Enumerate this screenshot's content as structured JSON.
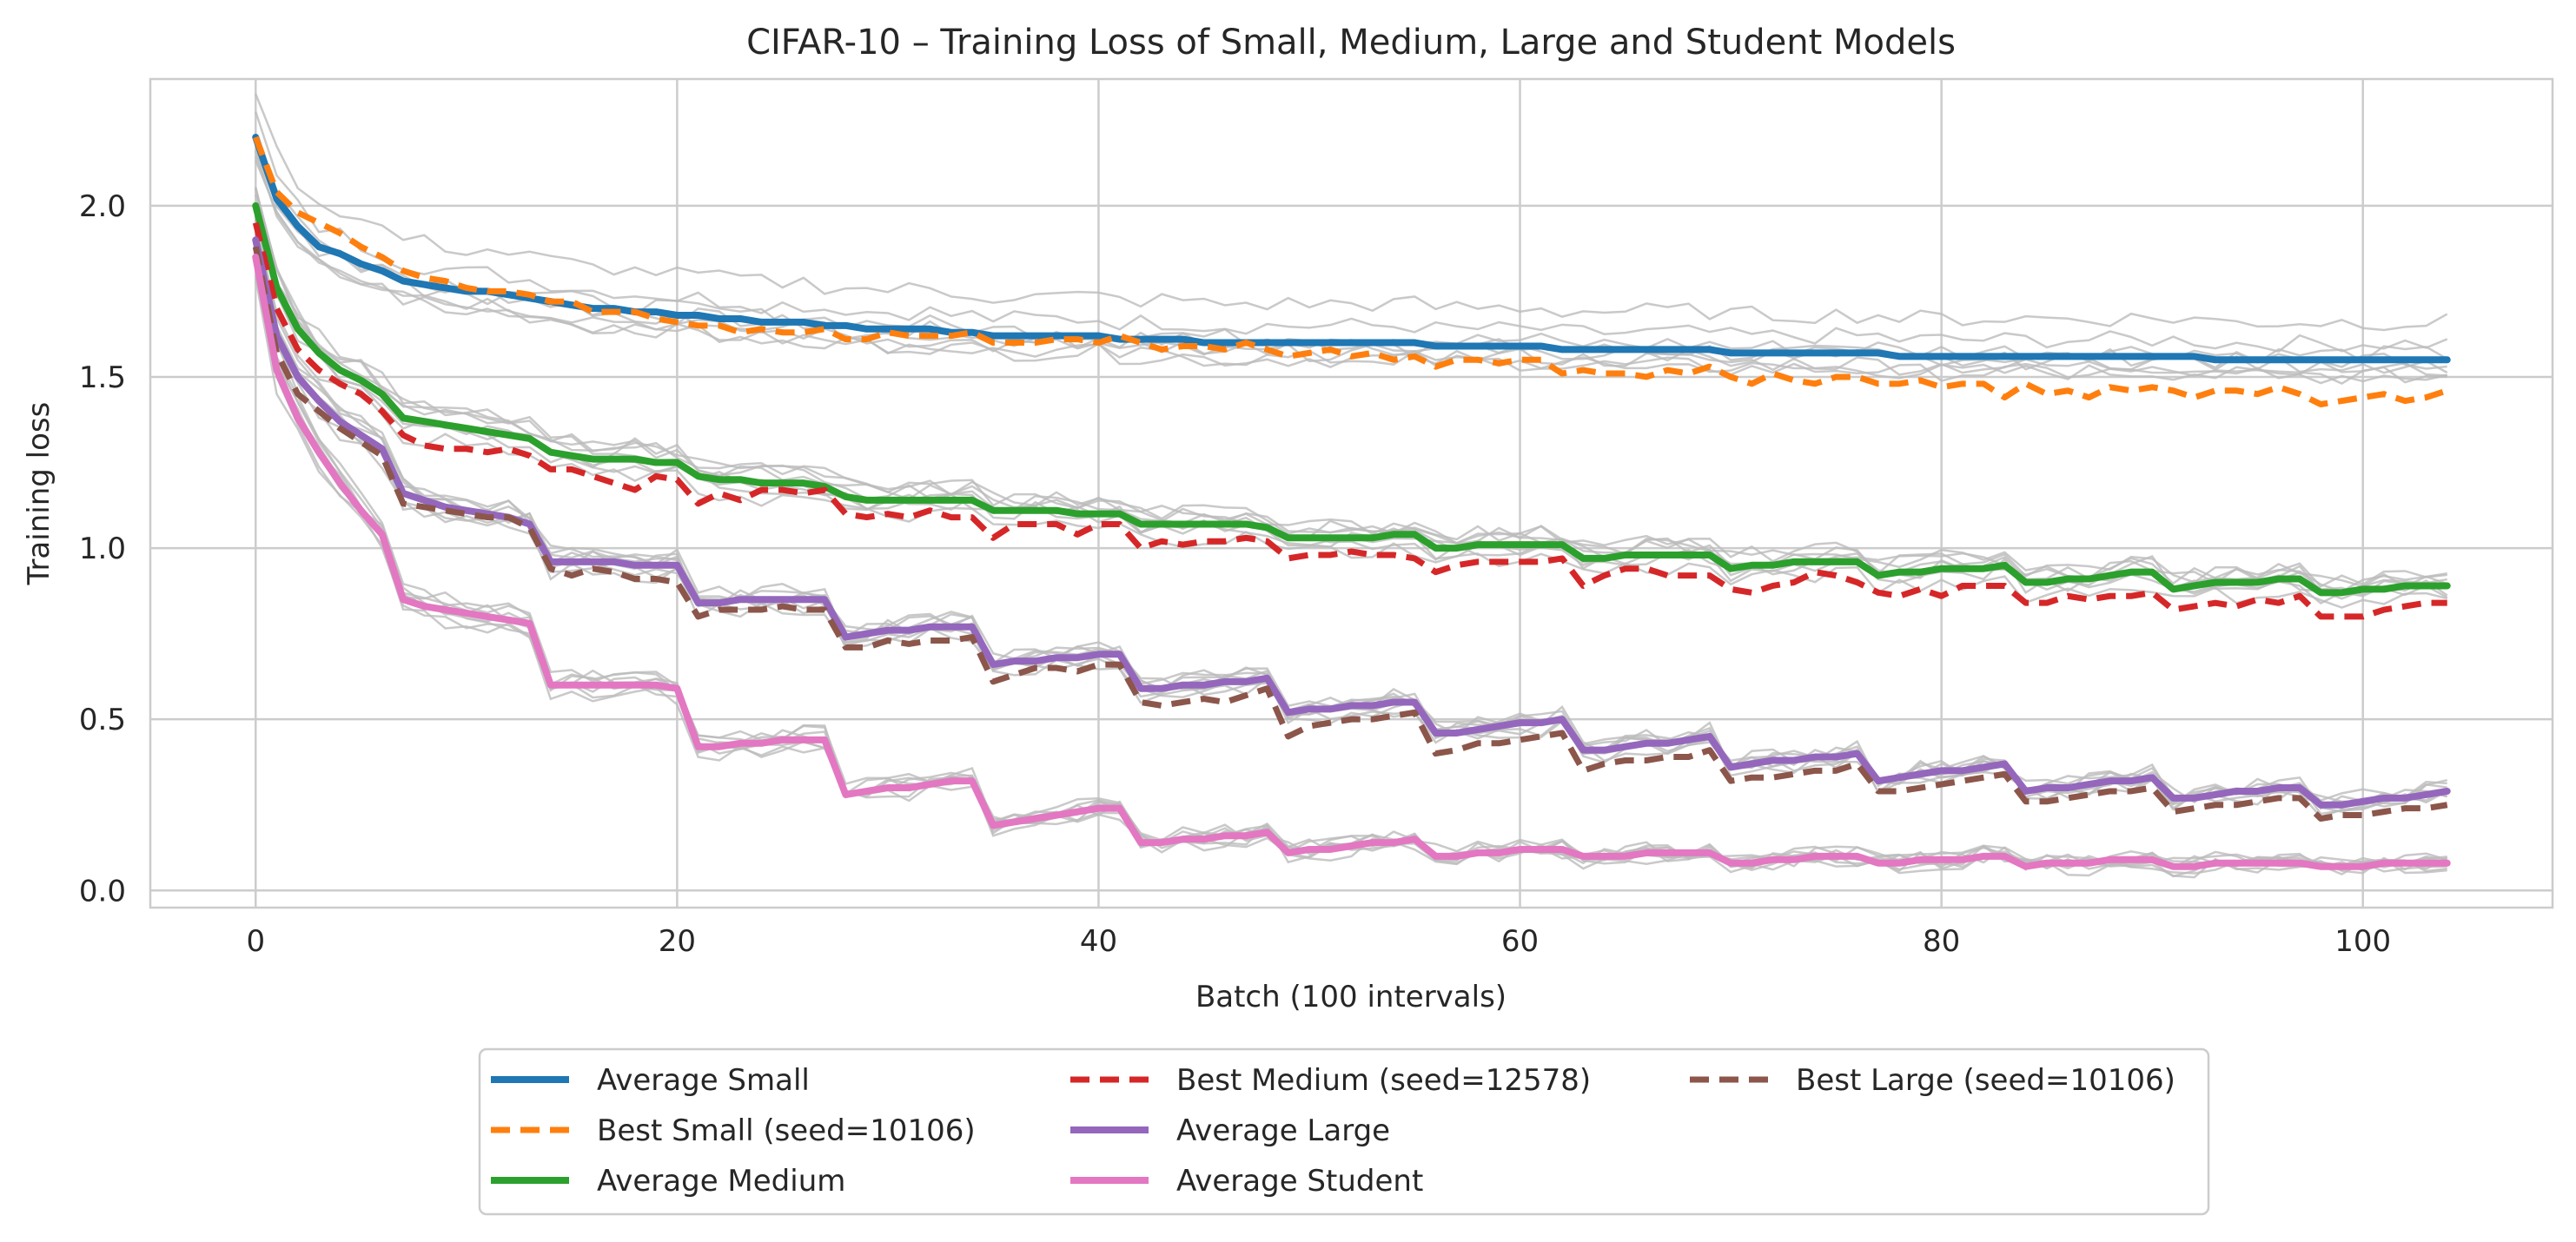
{
  "chart_data": {
    "type": "line",
    "title": "CIFAR-10 – Training Loss of Small, Medium, Large and Student Models",
    "xlabel": "Batch (100 intervals)",
    "ylabel": "Training loss",
    "xlim": [
      -5,
      109
    ],
    "ylim": [
      -0.05,
      2.37
    ],
    "xticks": [
      0,
      20,
      40,
      60,
      80,
      100
    ],
    "yticks": [
      0.0,
      0.5,
      1.0,
      1.5,
      2.0
    ],
    "xtick_labels": [
      "0",
      "20",
      "40",
      "60",
      "80",
      "100"
    ],
    "ytick_labels": [
      "0.0",
      "0.5",
      "1.0",
      "1.5",
      "2.0"
    ],
    "grid": true,
    "legend_position": "bottom-center",
    "legend_columns": 3,
    "x": [
      0,
      1,
      2,
      3,
      4,
      5,
      6,
      7,
      8,
      9,
      10,
      11,
      12,
      13,
      14,
      15,
      16,
      17,
      18,
      19,
      20,
      21,
      22,
      23,
      24,
      25,
      26,
      27,
      28,
      29,
      30,
      31,
      32,
      33,
      34,
      35,
      36,
      37,
      38,
      39,
      40,
      41,
      42,
      43,
      44,
      45,
      46,
      47,
      48,
      49,
      50,
      51,
      52,
      53,
      54,
      55,
      56,
      57,
      58,
      59,
      60,
      61,
      62,
      63,
      64,
      65,
      66,
      67,
      68,
      69,
      70,
      71,
      72,
      73,
      74,
      75,
      76,
      77,
      78,
      79,
      80,
      81,
      82,
      83,
      84,
      85,
      86,
      87,
      88,
      89,
      90,
      91,
      92,
      93,
      94,
      95,
      96,
      97,
      98,
      99,
      100,
      101,
      102,
      103,
      104
    ],
    "series": [
      {
        "name": "Average Small",
        "color": "#1f77b4",
        "style": "solid",
        "width": 8,
        "values": [
          2.2,
          2.02,
          1.94,
          1.88,
          1.86,
          1.83,
          1.81,
          1.78,
          1.77,
          1.76,
          1.75,
          1.75,
          1.74,
          1.73,
          1.72,
          1.71,
          1.7,
          1.7,
          1.69,
          1.69,
          1.68,
          1.68,
          1.67,
          1.67,
          1.66,
          1.66,
          1.66,
          1.65,
          1.65,
          1.64,
          1.64,
          1.64,
          1.64,
          1.63,
          1.63,
          1.62,
          1.62,
          1.62,
          1.62,
          1.62,
          1.62,
          1.61,
          1.61,
          1.61,
          1.61,
          1.6,
          1.6,
          1.6,
          1.6,
          1.6,
          1.6,
          1.6,
          1.6,
          1.6,
          1.6,
          1.6,
          1.59,
          1.59,
          1.59,
          1.59,
          1.59,
          1.59,
          1.58,
          1.58,
          1.58,
          1.58,
          1.58,
          1.58,
          1.58,
          1.58,
          1.57,
          1.57,
          1.57,
          1.57,
          1.57,
          1.57,
          1.57,
          1.57,
          1.56,
          1.56,
          1.56,
          1.56,
          1.56,
          1.56,
          1.56,
          1.56,
          1.56,
          1.56,
          1.56,
          1.56,
          1.56,
          1.56,
          1.56,
          1.55,
          1.55,
          1.55,
          1.55,
          1.55,
          1.55,
          1.55,
          1.55,
          1.55,
          1.55,
          1.55,
          1.55
        ]
      },
      {
        "name": "Best Small (seed=10106)",
        "color": "#ff7f0e",
        "style": "dashed",
        "width": 7,
        "values": [
          2.2,
          2.04,
          1.98,
          1.95,
          1.92,
          1.88,
          1.85,
          1.81,
          1.79,
          1.78,
          1.76,
          1.75,
          1.75,
          1.74,
          1.72,
          1.72,
          1.69,
          1.69,
          1.69,
          1.67,
          1.66,
          1.65,
          1.65,
          1.63,
          1.64,
          1.63,
          1.63,
          1.64,
          1.61,
          1.61,
          1.63,
          1.62,
          1.62,
          1.62,
          1.63,
          1.6,
          1.6,
          1.6,
          1.61,
          1.61,
          1.6,
          1.62,
          1.6,
          1.58,
          1.59,
          1.59,
          1.58,
          1.6,
          1.58,
          1.56,
          1.57,
          1.58,
          1.56,
          1.57,
          1.55,
          1.56,
          1.53,
          1.55,
          1.55,
          1.54,
          1.55,
          1.55,
          1.51,
          1.52,
          1.51,
          1.51,
          1.5,
          1.52,
          1.51,
          1.53,
          1.5,
          1.48,
          1.51,
          1.49,
          1.48,
          1.5,
          1.5,
          1.48,
          1.48,
          1.49,
          1.47,
          1.48,
          1.48,
          1.44,
          1.48,
          1.45,
          1.46,
          1.44,
          1.47,
          1.46,
          1.47,
          1.46,
          1.44,
          1.46,
          1.46,
          1.45,
          1.47,
          1.45,
          1.42,
          1.43,
          1.44,
          1.45,
          1.43,
          1.44,
          1.46
        ]
      },
      {
        "name": "Average Medium",
        "color": "#2ca02c",
        "style": "solid",
        "width": 8,
        "values": [
          2.0,
          1.76,
          1.64,
          1.57,
          1.52,
          1.49,
          1.45,
          1.38,
          1.37,
          1.36,
          1.35,
          1.34,
          1.33,
          1.32,
          1.28,
          1.27,
          1.26,
          1.26,
          1.26,
          1.25,
          1.25,
          1.21,
          1.2,
          1.2,
          1.19,
          1.19,
          1.19,
          1.18,
          1.15,
          1.14,
          1.14,
          1.14,
          1.14,
          1.14,
          1.14,
          1.11,
          1.11,
          1.11,
          1.11,
          1.1,
          1.1,
          1.1,
          1.07,
          1.07,
          1.07,
          1.07,
          1.07,
          1.07,
          1.06,
          1.03,
          1.03,
          1.03,
          1.03,
          1.03,
          1.04,
          1.04,
          1.0,
          1.0,
          1.01,
          1.01,
          1.01,
          1.01,
          1.01,
          0.97,
          0.97,
          0.98,
          0.98,
          0.98,
          0.98,
          0.98,
          0.94,
          0.95,
          0.95,
          0.96,
          0.96,
          0.96,
          0.96,
          0.92,
          0.93,
          0.93,
          0.94,
          0.94,
          0.94,
          0.95,
          0.9,
          0.9,
          0.91,
          0.91,
          0.92,
          0.93,
          0.93,
          0.88,
          0.89,
          0.9,
          0.9,
          0.9,
          0.91,
          0.91,
          0.87,
          0.87,
          0.88,
          0.88,
          0.89,
          0.89,
          0.89
        ]
      },
      {
        "name": "Best Medium (seed=12578)",
        "color": "#d62728",
        "style": "dashed",
        "width": 7,
        "values": [
          1.95,
          1.7,
          1.58,
          1.52,
          1.48,
          1.45,
          1.4,
          1.33,
          1.3,
          1.29,
          1.29,
          1.28,
          1.29,
          1.27,
          1.23,
          1.23,
          1.21,
          1.19,
          1.17,
          1.21,
          1.2,
          1.13,
          1.16,
          1.14,
          1.17,
          1.17,
          1.16,
          1.17,
          1.1,
          1.09,
          1.1,
          1.09,
          1.11,
          1.09,
          1.09,
          1.03,
          1.07,
          1.07,
          1.07,
          1.04,
          1.07,
          1.07,
          1.0,
          1.02,
          1.01,
          1.02,
          1.02,
          1.03,
          1.02,
          0.97,
          0.98,
          0.98,
          0.99,
          0.98,
          0.98,
          0.97,
          0.93,
          0.95,
          0.96,
          0.96,
          0.96,
          0.96,
          0.97,
          0.89,
          0.92,
          0.94,
          0.94,
          0.92,
          0.92,
          0.92,
          0.88,
          0.87,
          0.89,
          0.9,
          0.93,
          0.92,
          0.9,
          0.87,
          0.86,
          0.88,
          0.86,
          0.89,
          0.89,
          0.89,
          0.84,
          0.84,
          0.86,
          0.85,
          0.86,
          0.86,
          0.87,
          0.82,
          0.83,
          0.84,
          0.83,
          0.85,
          0.84,
          0.86,
          0.8,
          0.8,
          0.8,
          0.82,
          0.83,
          0.84,
          0.84
        ]
      },
      {
        "name": "Average Large",
        "color": "#9467bd",
        "style": "solid",
        "width": 8,
        "values": [
          1.9,
          1.62,
          1.5,
          1.43,
          1.37,
          1.33,
          1.29,
          1.16,
          1.14,
          1.12,
          1.11,
          1.1,
          1.09,
          1.07,
          0.96,
          0.96,
          0.96,
          0.96,
          0.95,
          0.95,
          0.95,
          0.84,
          0.84,
          0.85,
          0.85,
          0.85,
          0.85,
          0.85,
          0.74,
          0.75,
          0.76,
          0.76,
          0.77,
          0.77,
          0.77,
          0.66,
          0.67,
          0.67,
          0.68,
          0.68,
          0.69,
          0.69,
          0.59,
          0.59,
          0.6,
          0.6,
          0.61,
          0.61,
          0.62,
          0.52,
          0.53,
          0.53,
          0.54,
          0.54,
          0.55,
          0.55,
          0.46,
          0.46,
          0.47,
          0.48,
          0.49,
          0.49,
          0.5,
          0.41,
          0.41,
          0.42,
          0.43,
          0.43,
          0.44,
          0.45,
          0.36,
          0.37,
          0.38,
          0.38,
          0.39,
          0.39,
          0.4,
          0.32,
          0.33,
          0.34,
          0.35,
          0.35,
          0.36,
          0.37,
          0.29,
          0.3,
          0.3,
          0.31,
          0.32,
          0.32,
          0.33,
          0.27,
          0.27,
          0.28,
          0.29,
          0.29,
          0.3,
          0.3,
          0.25,
          0.25,
          0.26,
          0.27,
          0.27,
          0.28,
          0.29
        ]
      },
      {
        "name": "Best Large (seed=10106)",
        "color": "#8c564b",
        "style": "dashed",
        "width": 7,
        "values": [
          1.88,
          1.57,
          1.45,
          1.4,
          1.35,
          1.31,
          1.27,
          1.13,
          1.12,
          1.11,
          1.1,
          1.09,
          1.09,
          1.06,
          0.94,
          0.92,
          0.94,
          0.93,
          0.91,
          0.91,
          0.9,
          0.8,
          0.82,
          0.82,
          0.82,
          0.83,
          0.82,
          0.82,
          0.71,
          0.71,
          0.73,
          0.72,
          0.73,
          0.73,
          0.74,
          0.61,
          0.63,
          0.65,
          0.65,
          0.64,
          0.66,
          0.66,
          0.55,
          0.54,
          0.55,
          0.56,
          0.55,
          0.57,
          0.59,
          0.45,
          0.48,
          0.49,
          0.5,
          0.5,
          0.51,
          0.52,
          0.4,
          0.41,
          0.43,
          0.43,
          0.44,
          0.45,
          0.46,
          0.35,
          0.37,
          0.38,
          0.38,
          0.39,
          0.39,
          0.41,
          0.32,
          0.33,
          0.33,
          0.34,
          0.35,
          0.35,
          0.37,
          0.29,
          0.29,
          0.3,
          0.31,
          0.32,
          0.33,
          0.34,
          0.26,
          0.26,
          0.27,
          0.28,
          0.29,
          0.29,
          0.3,
          0.23,
          0.24,
          0.25,
          0.25,
          0.26,
          0.27,
          0.27,
          0.21,
          0.22,
          0.22,
          0.23,
          0.24,
          0.24,
          0.25
        ]
      },
      {
        "name": "Average Student",
        "color": "#e377c2",
        "style": "solid",
        "width": 8,
        "values": [
          1.85,
          1.52,
          1.38,
          1.28,
          1.19,
          1.11,
          1.04,
          0.85,
          0.83,
          0.82,
          0.81,
          0.8,
          0.79,
          0.78,
          0.6,
          0.6,
          0.6,
          0.6,
          0.6,
          0.6,
          0.59,
          0.42,
          0.42,
          0.43,
          0.43,
          0.44,
          0.44,
          0.44,
          0.28,
          0.29,
          0.3,
          0.3,
          0.31,
          0.32,
          0.32,
          0.19,
          0.2,
          0.21,
          0.22,
          0.23,
          0.24,
          0.24,
          0.14,
          0.14,
          0.15,
          0.15,
          0.16,
          0.16,
          0.17,
          0.11,
          0.12,
          0.12,
          0.13,
          0.14,
          0.14,
          0.15,
          0.1,
          0.1,
          0.11,
          0.11,
          0.12,
          0.12,
          0.12,
          0.1,
          0.1,
          0.1,
          0.11,
          0.11,
          0.11,
          0.11,
          0.08,
          0.08,
          0.09,
          0.09,
          0.1,
          0.1,
          0.1,
          0.08,
          0.08,
          0.09,
          0.09,
          0.09,
          0.1,
          0.1,
          0.07,
          0.08,
          0.08,
          0.08,
          0.09,
          0.09,
          0.09,
          0.07,
          0.07,
          0.08,
          0.08,
          0.08,
          0.08,
          0.08,
          0.07,
          0.07,
          0.07,
          0.08,
          0.08,
          0.08,
          0.08
        ]
      }
    ],
    "legend_order": [
      0,
      1,
      2,
      3,
      4,
      6,
      5
    ],
    "background_runs_color": "#bbbbbb"
  }
}
